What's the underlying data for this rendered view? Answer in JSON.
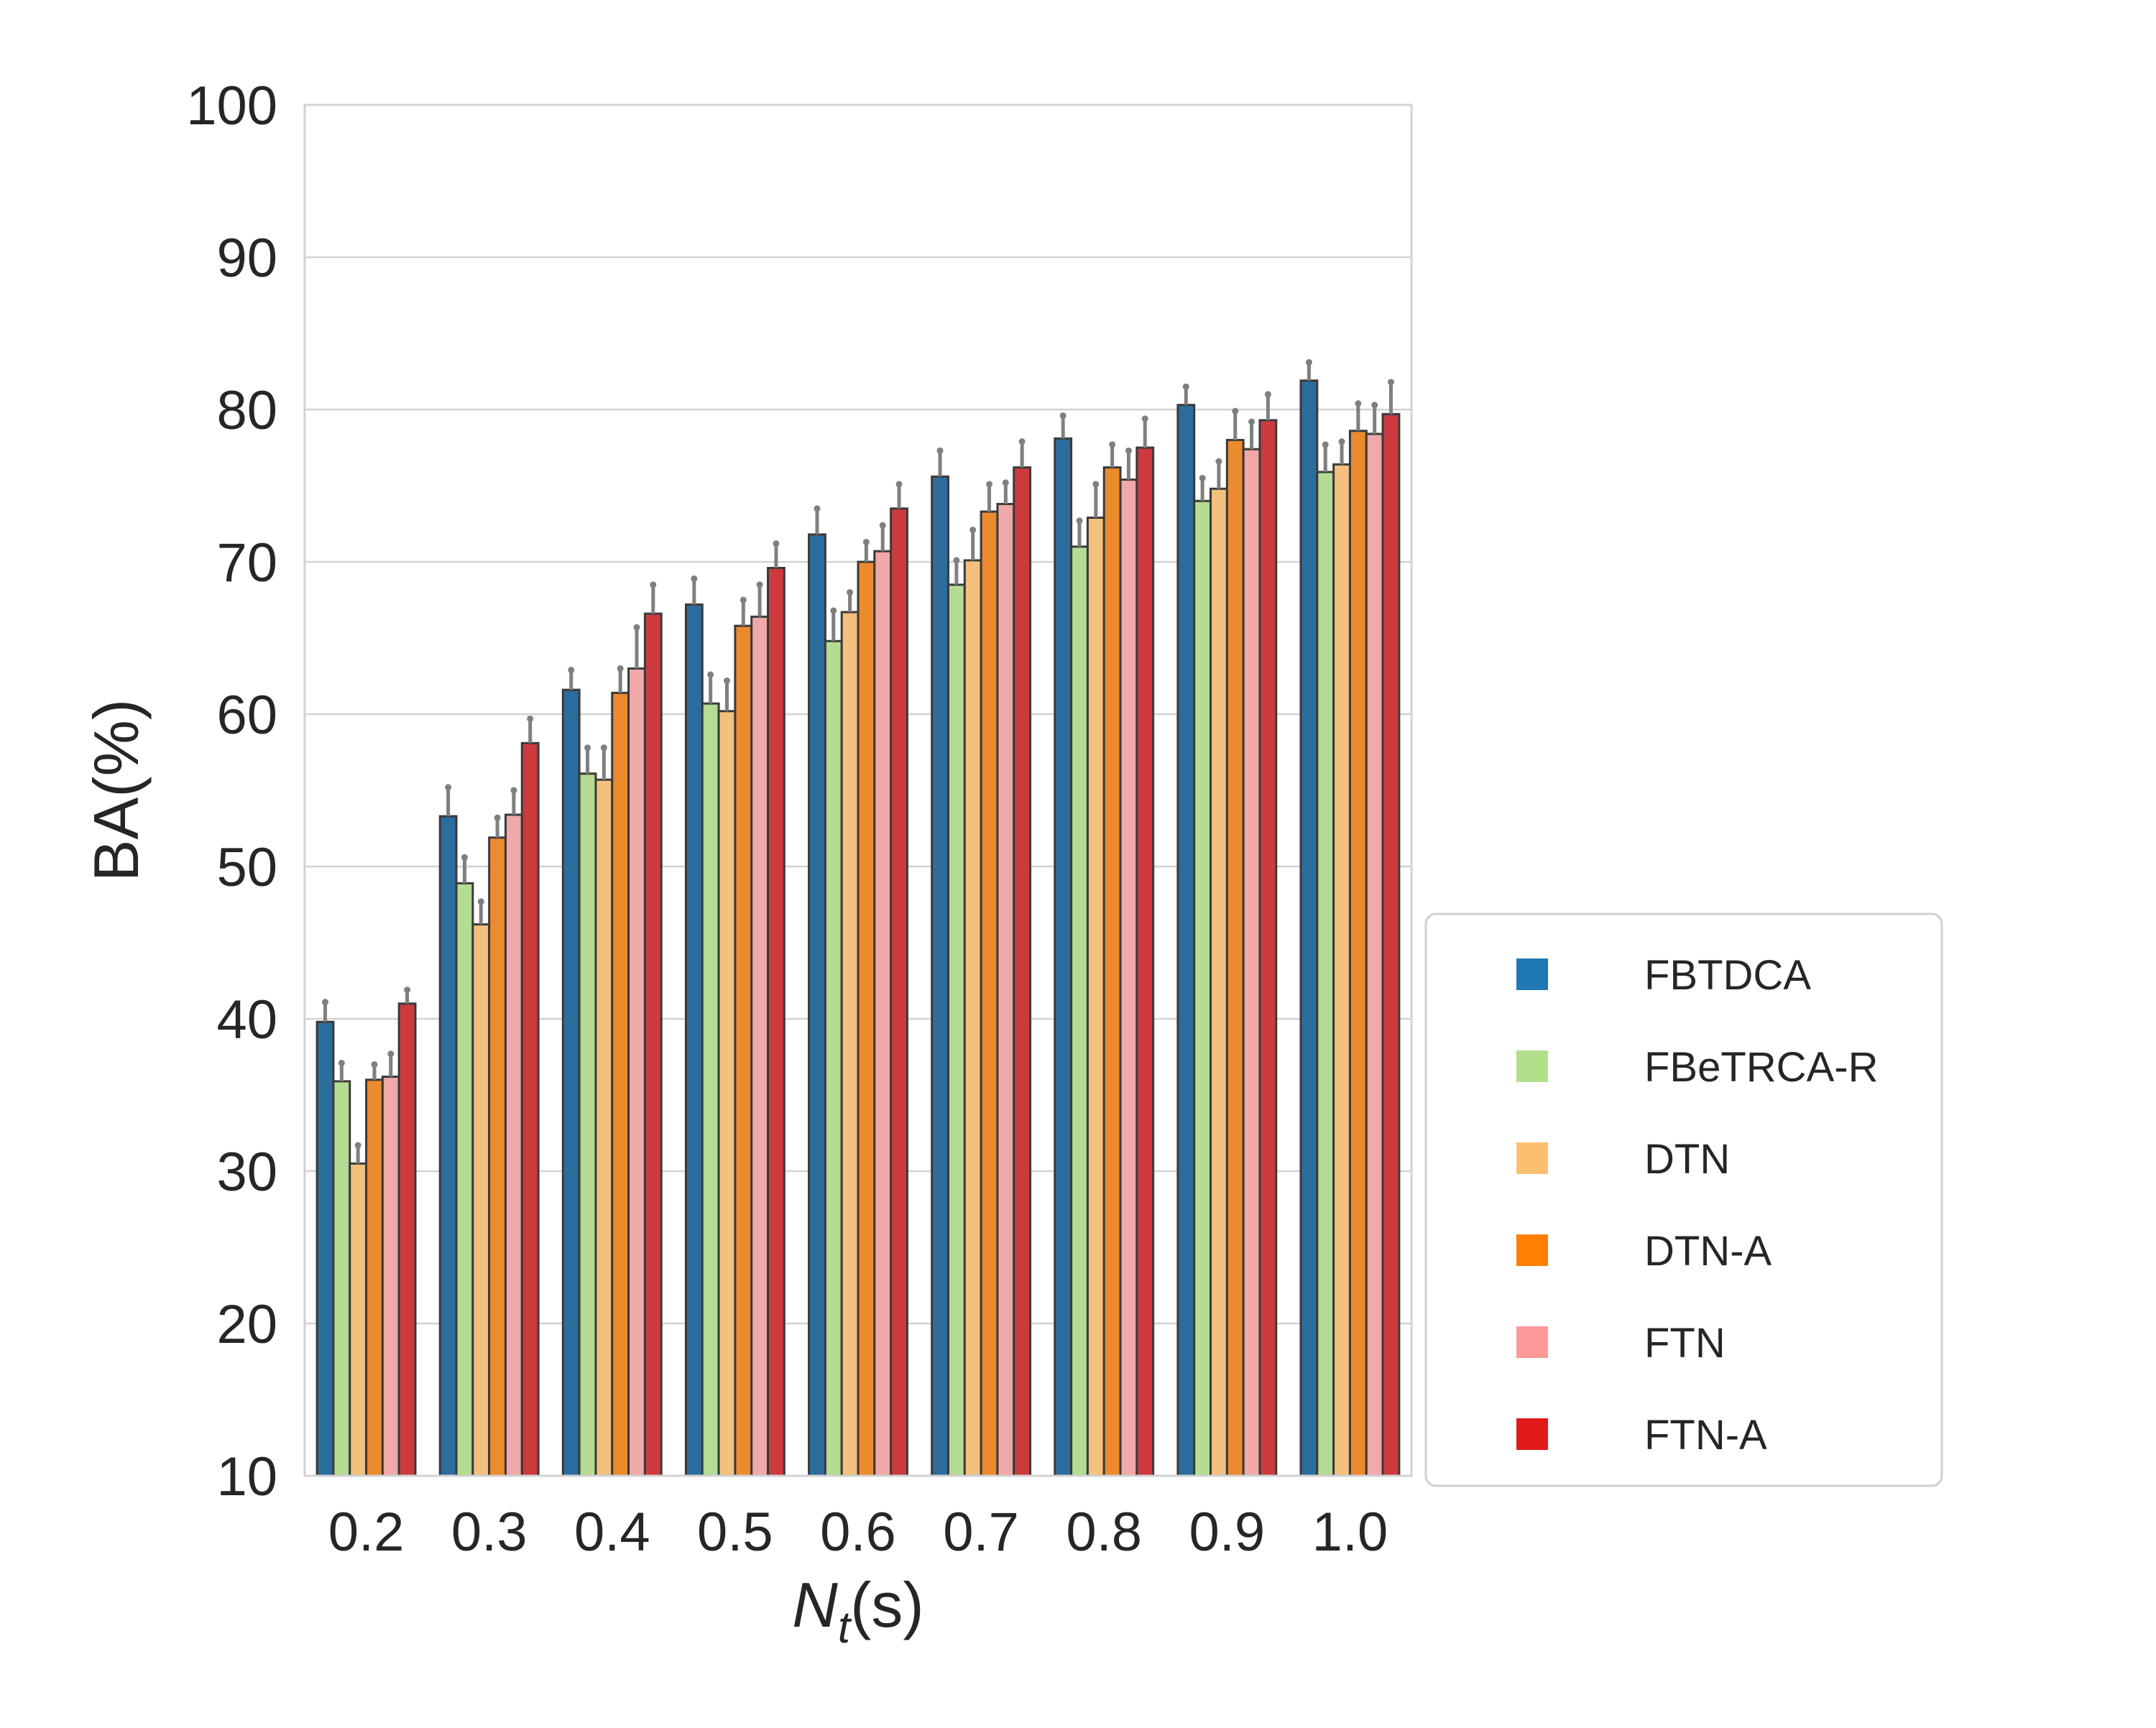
{
  "chart_data": {
    "type": "bar",
    "title": "",
    "xlabel": "N_t(s)",
    "xlabel_main": "N",
    "xlabel_sub": "t",
    "xlabel_unit": "(s)",
    "ylabel": "BA(%)",
    "ylim": [
      10,
      100
    ],
    "yticks": [
      "10",
      "20",
      "30",
      "40",
      "50",
      "60",
      "70",
      "80",
      "90",
      "100"
    ],
    "grid": "horizontal",
    "legend_position": "right, outside plot",
    "categories": [
      "0.2",
      "0.3",
      "0.4",
      "0.5",
      "0.6",
      "0.7",
      "0.8",
      "0.9",
      "1.0"
    ],
    "series": [
      {
        "name": "FBTDCA",
        "color": "#2b6d9c",
        "legend_color": "#1f77b4",
        "values": [
          39.8,
          53.3,
          61.6,
          67.2,
          71.8,
          75.6,
          78.1,
          80.3,
          81.9
        ],
        "errors": [
          1.3,
          1.9,
          1.3,
          1.7,
          1.7,
          1.7,
          1.5,
          1.2,
          1.2
        ]
      },
      {
        "name": "FBeTRCA-R",
        "color": "#b5dc93",
        "legend_color": "#b2df8a",
        "values": [
          35.9,
          48.9,
          56.1,
          60.7,
          64.8,
          68.5,
          71.0,
          74.0,
          75.9
        ],
        "errors": [
          1.2,
          1.7,
          1.7,
          1.9,
          2.0,
          1.6,
          1.7,
          1.5,
          1.8
        ]
      },
      {
        "name": "DTN",
        "color": "#f4c07e",
        "legend_color": "#fdbf6f",
        "values": [
          30.5,
          46.2,
          55.7,
          60.2,
          66.7,
          70.1,
          72.9,
          74.8,
          76.4
        ],
        "errors": [
          1.2,
          1.5,
          2.1,
          2.0,
          1.3,
          2.0,
          2.2,
          1.8,
          1.5
        ]
      },
      {
        "name": "DTN-A",
        "color": "#ec8a2e",
        "legend_color": "#ff7f00",
        "values": [
          36.0,
          51.9,
          61.4,
          65.8,
          70.0,
          73.3,
          76.2,
          78.0,
          78.6
        ],
        "errors": [
          1.0,
          1.3,
          1.6,
          1.7,
          1.3,
          1.8,
          1.5,
          1.9,
          1.8
        ]
      },
      {
        "name": "FTN",
        "color": "#f0a8a8",
        "legend_color": "#fb9a99",
        "values": [
          36.2,
          53.4,
          63.0,
          66.4,
          70.7,
          73.8,
          75.4,
          77.4,
          78.4
        ],
        "errors": [
          1.5,
          1.6,
          2.7,
          2.1,
          1.7,
          1.4,
          1.9,
          1.8,
          1.9
        ]
      },
      {
        "name": "FTN-A",
        "color": "#cd3a3e",
        "legend_color": "#e31a1c",
        "values": [
          41.0,
          58.1,
          66.6,
          69.6,
          73.5,
          76.2,
          77.5,
          79.3,
          79.7
        ],
        "errors": [
          0.9,
          1.6,
          1.9,
          1.6,
          1.6,
          1.7,
          1.9,
          1.7,
          2.1
        ]
      }
    ]
  }
}
